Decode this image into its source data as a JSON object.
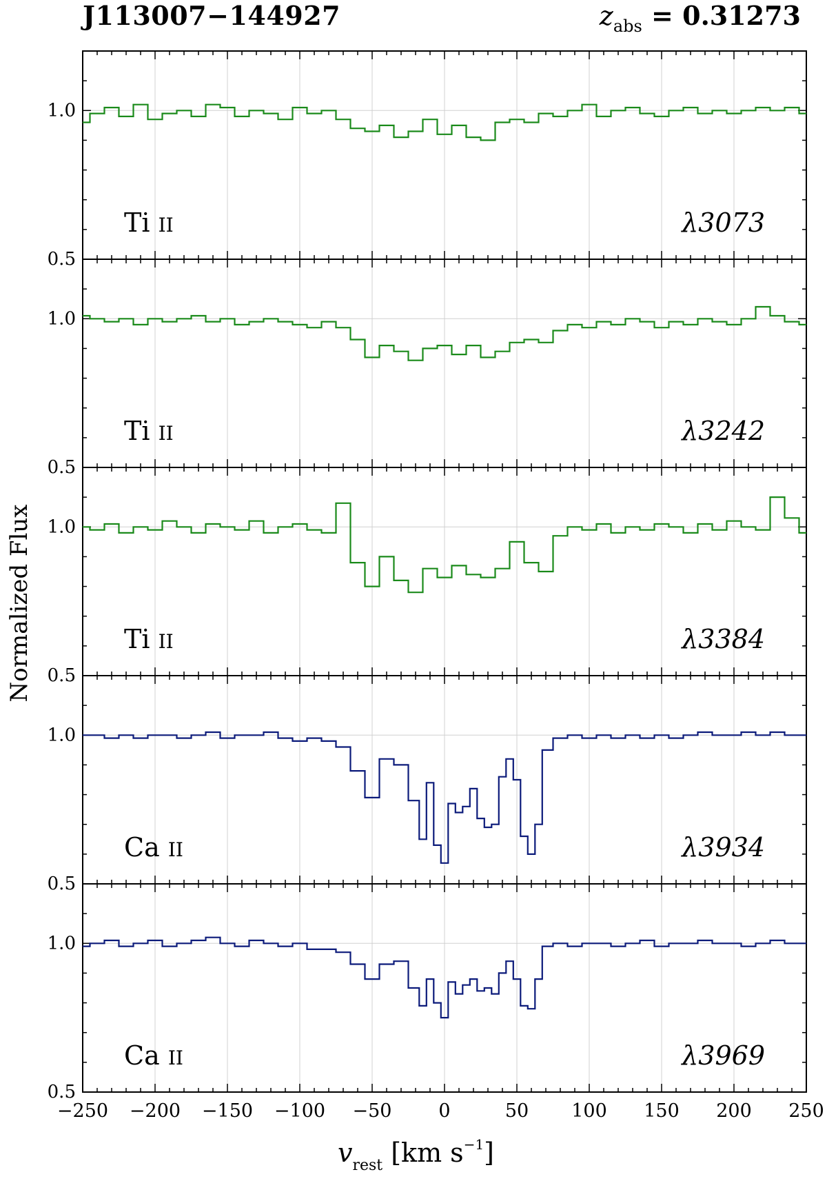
{
  "header": {
    "object": "J113007−144927",
    "z_symbol": "z",
    "z_sub": "abs",
    "z_rest": " = 0.31273"
  },
  "axes": {
    "ylabel": "Normalized Flux",
    "xlabel_var": "v",
    "xlabel_sub": "rest",
    "xlabel_unit_open": " [km s",
    "xlabel_sup": "−1",
    "xlabel_unit_close": "]"
  },
  "colors": {
    "green": "#1a8a1a",
    "navy": "#0b1a7a",
    "grid": "#d0d0d0"
  },
  "chart_data": [
    {
      "type": "line",
      "ion_element": "Ti",
      "ion_stage": "II",
      "wavelength": "λ3073",
      "color": "#1a8a1a",
      "xlim": [
        -250,
        250
      ],
      "ylim": [
        0.5,
        1.2
      ],
      "yticks": [
        "0.5",
        "1.0"
      ],
      "xticks": [],
      "x": [
        -250,
        -240,
        -230,
        -220,
        -210,
        -200,
        -190,
        -180,
        -170,
        -160,
        -150,
        -140,
        -130,
        -120,
        -110,
        -100,
        -90,
        -80,
        -70,
        -60,
        -50,
        -40,
        -30,
        -20,
        -10,
        0,
        10,
        20,
        30,
        40,
        50,
        60,
        70,
        80,
        90,
        100,
        110,
        120,
        130,
        140,
        150,
        160,
        170,
        180,
        190,
        200,
        210,
        220,
        230,
        240,
        250
      ],
      "y": [
        0.96,
        0.99,
        1.01,
        0.98,
        1.02,
        0.97,
        0.99,
        1.0,
        0.98,
        1.02,
        1.01,
        0.98,
        1.0,
        0.99,
        0.97,
        1.01,
        0.99,
        1.0,
        0.97,
        0.94,
        0.93,
        0.95,
        0.91,
        0.93,
        0.97,
        0.92,
        0.95,
        0.91,
        0.9,
        0.96,
        0.97,
        0.96,
        0.99,
        0.98,
        1.0,
        1.02,
        0.98,
        1.0,
        1.01,
        0.99,
        0.98,
        1.0,
        1.01,
        0.99,
        1.0,
        0.99,
        1.0,
        1.01,
        1.0,
        1.01,
        0.99
      ]
    },
    {
      "type": "line",
      "ion_element": "Ti",
      "ion_stage": "II",
      "wavelength": "λ3242",
      "color": "#1a8a1a",
      "xlim": [
        -250,
        250
      ],
      "ylim": [
        0.5,
        1.2
      ],
      "yticks": [
        "0.5",
        "1.0"
      ],
      "xticks": [],
      "x": [
        -250,
        -240,
        -230,
        -220,
        -210,
        -200,
        -190,
        -180,
        -170,
        -160,
        -150,
        -140,
        -130,
        -120,
        -110,
        -100,
        -90,
        -80,
        -70,
        -60,
        -50,
        -40,
        -30,
        -20,
        -10,
        0,
        10,
        20,
        30,
        40,
        50,
        60,
        70,
        80,
        90,
        100,
        110,
        120,
        130,
        140,
        150,
        160,
        170,
        180,
        190,
        200,
        210,
        220,
        230,
        240,
        250
      ],
      "y": [
        1.01,
        1.0,
        0.99,
        1.0,
        0.98,
        1.0,
        0.99,
        1.0,
        1.01,
        0.99,
        1.0,
        0.98,
        0.99,
        1.0,
        0.99,
        0.98,
        0.97,
        0.99,
        0.97,
        0.93,
        0.87,
        0.91,
        0.89,
        0.86,
        0.9,
        0.91,
        0.88,
        0.91,
        0.87,
        0.89,
        0.92,
        0.93,
        0.92,
        0.96,
        0.98,
        0.97,
        0.99,
        0.98,
        1.0,
        0.99,
        0.97,
        0.99,
        0.98,
        1.0,
        0.99,
        0.98,
        1.0,
        1.04,
        1.01,
        0.99,
        0.98
      ]
    },
    {
      "type": "line",
      "ion_element": "Ti",
      "ion_stage": "II",
      "wavelength": "λ3384",
      "color": "#1a8a1a",
      "xlim": [
        -250,
        250
      ],
      "ylim": [
        0.5,
        1.2
      ],
      "yticks": [
        "0.5",
        "1.0"
      ],
      "xticks": [],
      "x": [
        -250,
        -240,
        -230,
        -220,
        -210,
        -200,
        -190,
        -180,
        -170,
        -160,
        -150,
        -140,
        -130,
        -120,
        -110,
        -100,
        -90,
        -80,
        -70,
        -60,
        -50,
        -40,
        -30,
        -20,
        -10,
        0,
        10,
        20,
        30,
        40,
        50,
        60,
        70,
        80,
        90,
        100,
        110,
        120,
        130,
        140,
        150,
        160,
        170,
        180,
        190,
        200,
        210,
        220,
        230,
        240,
        250
      ],
      "y": [
        1.0,
        0.99,
        1.01,
        0.98,
        1.0,
        0.99,
        1.02,
        1.0,
        0.98,
        1.01,
        1.0,
        0.99,
        1.02,
        0.98,
        1.0,
        1.01,
        0.99,
        0.98,
        1.08,
        0.88,
        0.8,
        0.9,
        0.82,
        0.78,
        0.86,
        0.83,
        0.87,
        0.84,
        0.83,
        0.86,
        0.95,
        0.88,
        0.85,
        0.97,
        1.0,
        0.99,
        1.01,
        0.98,
        1.0,
        0.99,
        1.01,
        1.0,
        0.98,
        1.01,
        0.99,
        1.02,
        1.0,
        0.99,
        1.1,
        1.03,
        0.98
      ]
    },
    {
      "type": "line",
      "ion_element": "Ca",
      "ion_stage": "II",
      "wavelength": "λ3934",
      "color": "#0b1a7a",
      "xlim": [
        -250,
        250
      ],
      "ylim": [
        0.5,
        1.2
      ],
      "yticks": [
        "0.5",
        "1.0"
      ],
      "xticks": [],
      "x": [
        -250,
        -240,
        -230,
        -220,
        -210,
        -200,
        -190,
        -180,
        -170,
        -160,
        -150,
        -140,
        -130,
        -120,
        -110,
        -100,
        -90,
        -80,
        -70,
        -60,
        -50,
        -40,
        -30,
        -20,
        -15,
        -10,
        -5,
        0,
        5,
        10,
        15,
        20,
        25,
        30,
        35,
        40,
        45,
        50,
        55,
        60,
        65,
        70,
        80,
        90,
        100,
        110,
        120,
        130,
        140,
        150,
        160,
        170,
        180,
        190,
        200,
        210,
        220,
        230,
        240,
        250
      ],
      "y": [
        1.0,
        1.0,
        0.99,
        1.0,
        0.99,
        1.0,
        1.0,
        0.99,
        1.0,
        1.01,
        0.99,
        1.0,
        1.0,
        1.01,
        0.99,
        0.98,
        0.99,
        0.98,
        0.96,
        0.88,
        0.79,
        0.92,
        0.9,
        0.78,
        0.65,
        0.84,
        0.63,
        0.57,
        0.77,
        0.74,
        0.76,
        0.82,
        0.72,
        0.69,
        0.7,
        0.86,
        0.92,
        0.85,
        0.66,
        0.6,
        0.7,
        0.95,
        0.99,
        1.0,
        0.99,
        1.0,
        0.99,
        1.0,
        0.99,
        1.0,
        0.99,
        1.0,
        1.01,
        1.0,
        1.0,
        1.01,
        1.0,
        1.01,
        1.0,
        1.0
      ]
    },
    {
      "type": "line",
      "ion_element": "Ca",
      "ion_stage": "II",
      "wavelength": "λ3969",
      "color": "#0b1a7a",
      "xlim": [
        -250,
        250
      ],
      "ylim": [
        0.5,
        1.2
      ],
      "yticks": [
        "0.5",
        "1.0"
      ],
      "xticks": [
        "−250",
        "−200",
        "−150",
        "−100",
        "−50",
        "0",
        "50",
        "100",
        "150",
        "200",
        "250"
      ],
      "x": [
        -250,
        -240,
        -230,
        -220,
        -210,
        -200,
        -190,
        -180,
        -170,
        -160,
        -150,
        -140,
        -130,
        -120,
        -110,
        -100,
        -90,
        -80,
        -70,
        -60,
        -50,
        -40,
        -30,
        -20,
        -15,
        -10,
        -5,
        0,
        5,
        10,
        15,
        20,
        25,
        30,
        35,
        40,
        45,
        50,
        55,
        60,
        65,
        70,
        80,
        90,
        100,
        110,
        120,
        130,
        140,
        150,
        160,
        170,
        180,
        190,
        200,
        210,
        220,
        230,
        240,
        250
      ],
      "y": [
        0.99,
        1.0,
        1.01,
        0.99,
        1.0,
        1.01,
        0.99,
        1.0,
        1.01,
        1.02,
        1.0,
        0.99,
        1.01,
        1.0,
        0.99,
        1.0,
        0.98,
        0.98,
        0.97,
        0.93,
        0.88,
        0.93,
        0.94,
        0.85,
        0.79,
        0.88,
        0.8,
        0.75,
        0.87,
        0.83,
        0.86,
        0.88,
        0.84,
        0.85,
        0.83,
        0.9,
        0.94,
        0.88,
        0.79,
        0.78,
        0.88,
        0.99,
        1.0,
        0.99,
        1.0,
        1.0,
        0.99,
        1.0,
        1.01,
        0.99,
        1.0,
        1.0,
        1.01,
        1.0,
        1.0,
        0.99,
        1.0,
        1.01,
        1.0,
        1.0
      ]
    }
  ]
}
